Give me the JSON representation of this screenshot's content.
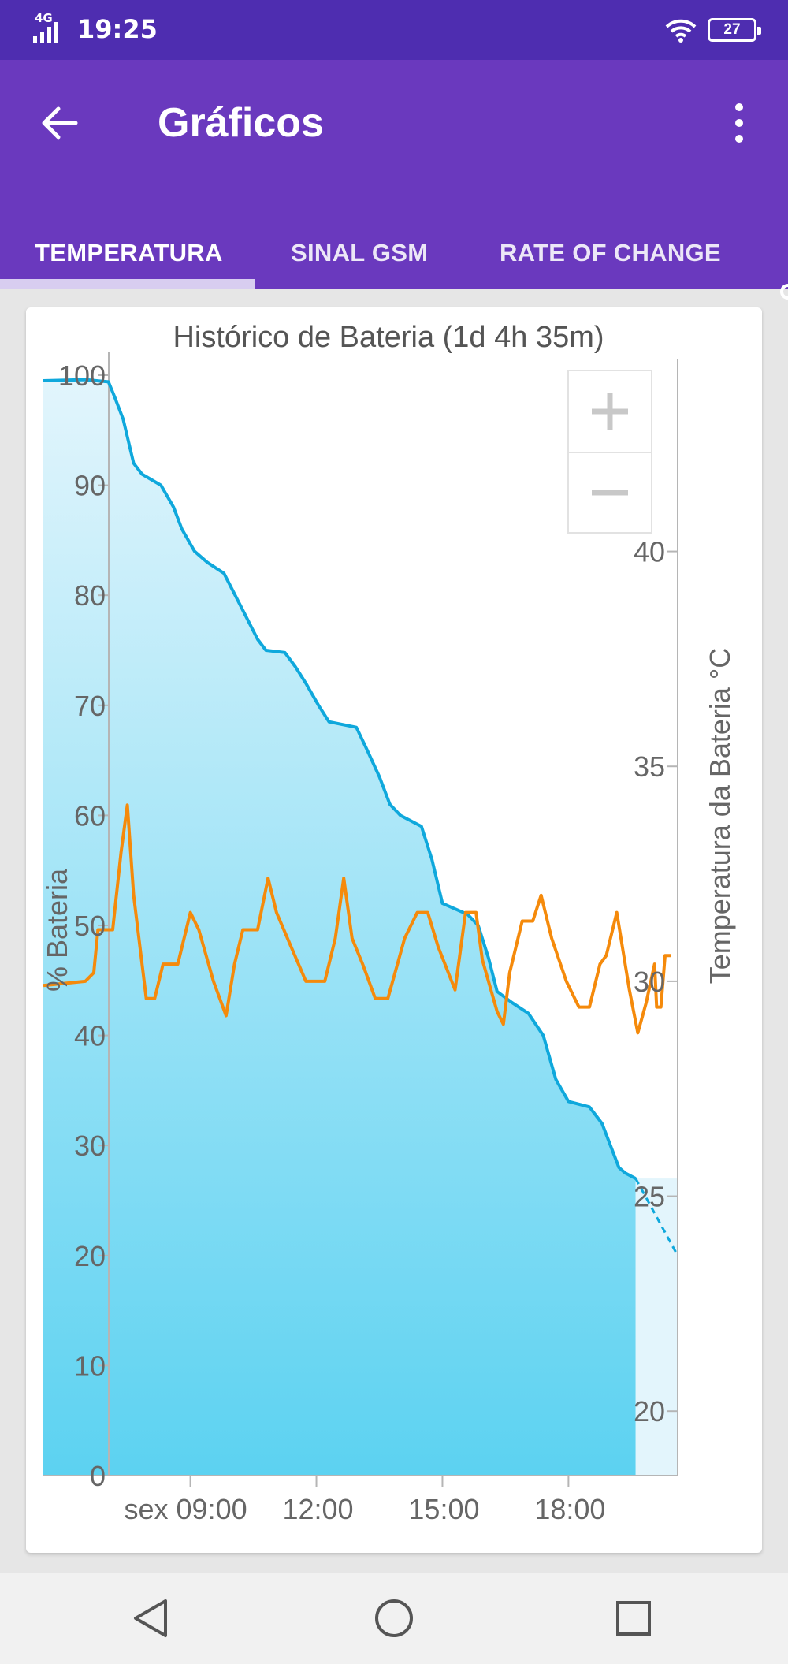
{
  "status_bar": {
    "network": "4G",
    "time": "19:25",
    "battery": "27"
  },
  "app_bar": {
    "title": "Gráficos"
  },
  "tabs": [
    {
      "label": "TEMPERATURA",
      "active": true
    },
    {
      "label": "SINAL GSM",
      "active": false
    },
    {
      "label": "RATE OF CHANGE",
      "active": false
    }
  ],
  "colors": {
    "status_bar": "#4e2db0",
    "app_bar": "#6a39be",
    "battery_line": "#0fa8dc",
    "temperature_line": "#f58a0b",
    "fill_top": "#e2f5fc",
    "fill_bottom": "#5cd2f1"
  },
  "icons": {
    "back": "arrow-back-icon",
    "menu": "more-vert-icon",
    "zoom_in": "plus-icon",
    "zoom_out": "minus-icon",
    "nav_back": "triangle-back-icon",
    "nav_home": "circle-home-icon",
    "nav_recent": "square-recent-icon"
  },
  "chart_data": {
    "type": "line",
    "title": "Histórico de Bateria (1d 4h 35m)",
    "ylabel_left": "% Bateria",
    "ylabel_right": "Temperatura da Bateria °C",
    "x_ticks": [
      "sex 09:00",
      "12:00",
      "15:00",
      "18:00"
    ],
    "x_tick_hours": [
      9,
      12,
      15,
      18
    ],
    "xlim_hours": [
      5.5,
      20.6
    ],
    "y_left_ticks": [
      0,
      10,
      20,
      30,
      40,
      50,
      60,
      70,
      80,
      90,
      100
    ],
    "ylim_left": [
      0,
      100
    ],
    "y_right_ticks": [
      20,
      25,
      30,
      35,
      40
    ],
    "ylim_right": [
      18.5,
      44.1
    ],
    "grid": false,
    "series": [
      {
        "axis": "left",
        "points": [
          [
            5.5,
            99.5
          ],
          [
            6.5,
            99.6
          ],
          [
            7.05,
            99.4
          ],
          [
            7.2,
            98
          ],
          [
            7.4,
            96
          ],
          [
            7.65,
            92
          ],
          [
            7.85,
            91
          ],
          [
            8.3,
            90
          ],
          [
            8.6,
            88
          ],
          [
            8.8,
            86
          ],
          [
            9.1,
            84
          ],
          [
            9.4,
            83
          ],
          [
            9.8,
            82
          ],
          [
            10.2,
            79
          ],
          [
            10.6,
            76
          ],
          [
            10.8,
            75
          ],
          [
            11.25,
            74.8
          ],
          [
            11.5,
            73.5
          ],
          [
            11.75,
            72
          ],
          [
            12.05,
            70
          ],
          [
            12.3,
            68.5
          ],
          [
            12.95,
            68
          ],
          [
            13.2,
            66
          ],
          [
            13.5,
            63.5
          ],
          [
            13.75,
            61
          ],
          [
            14,
            60
          ],
          [
            14.5,
            59
          ],
          [
            14.75,
            56
          ],
          [
            15,
            52
          ],
          [
            15.3,
            51.5
          ],
          [
            15.6,
            51
          ],
          [
            15.85,
            50
          ],
          [
            16.1,
            47
          ],
          [
            16.3,
            44
          ],
          [
            16.65,
            43
          ],
          [
            17.05,
            42
          ],
          [
            17.4,
            40
          ],
          [
            17.7,
            36
          ],
          [
            18,
            34
          ],
          [
            18.5,
            33.5
          ],
          [
            18.8,
            32
          ],
          [
            19,
            30
          ],
          [
            19.2,
            28
          ],
          [
            19.35,
            27.5
          ],
          [
            19.6,
            27
          ]
        ]
      },
      {
        "axis": "left",
        "projected": true,
        "points": [
          [
            19.6,
            27
          ],
          [
            20.6,
            20
          ]
        ]
      },
      {
        "axis": "right",
        "points": [
          [
            5.5,
            29.9
          ],
          [
            6.5,
            30
          ],
          [
            6.7,
            30.2
          ],
          [
            6.8,
            31.2
          ],
          [
            7.15,
            31.2
          ],
          [
            7.35,
            33
          ],
          [
            7.5,
            34.1
          ],
          [
            7.65,
            32
          ],
          [
            7.8,
            30.8
          ],
          [
            7.95,
            29.6
          ],
          [
            8.15,
            29.6
          ],
          [
            8.35,
            30.4
          ],
          [
            8.7,
            30.4
          ],
          [
            9,
            31.6
          ],
          [
            9.2,
            31.2
          ],
          [
            9.55,
            30
          ],
          [
            9.85,
            29.2
          ],
          [
            10.05,
            30.4
          ],
          [
            10.25,
            31.2
          ],
          [
            10.6,
            31.2
          ],
          [
            10.85,
            32.4
          ],
          [
            11.05,
            31.6
          ],
          [
            11.4,
            30.8
          ],
          [
            11.75,
            30
          ],
          [
            12.2,
            30
          ],
          [
            12.45,
            31
          ],
          [
            12.65,
            32.4
          ],
          [
            12.85,
            31
          ],
          [
            13.1,
            30.4
          ],
          [
            13.4,
            29.6
          ],
          [
            13.7,
            29.6
          ],
          [
            14.1,
            31
          ],
          [
            14.4,
            31.6
          ],
          [
            14.65,
            31.6
          ],
          [
            14.9,
            30.8
          ],
          [
            15.3,
            29.8
          ],
          [
            15.55,
            31.6
          ],
          [
            15.8,
            31.6
          ],
          [
            15.95,
            30.5
          ],
          [
            16.3,
            29.3
          ],
          [
            16.45,
            29
          ],
          [
            16.6,
            30.2
          ],
          [
            16.9,
            31.4
          ],
          [
            17.15,
            31.4
          ],
          [
            17.35,
            32
          ],
          [
            17.6,
            31
          ],
          [
            17.95,
            30
          ],
          [
            18.25,
            29.4
          ],
          [
            18.5,
            29.4
          ],
          [
            18.75,
            30.4
          ],
          [
            18.9,
            30.6
          ],
          [
            19.15,
            31.6
          ],
          [
            19.45,
            29.8
          ],
          [
            19.65,
            28.8
          ],
          [
            19.85,
            29.5
          ],
          [
            20.05,
            30.4
          ],
          [
            20.1,
            29.4
          ],
          [
            20.2,
            29.4
          ],
          [
            20.3,
            30.6
          ],
          [
            20.45,
            30.6
          ]
        ]
      }
    ]
  }
}
